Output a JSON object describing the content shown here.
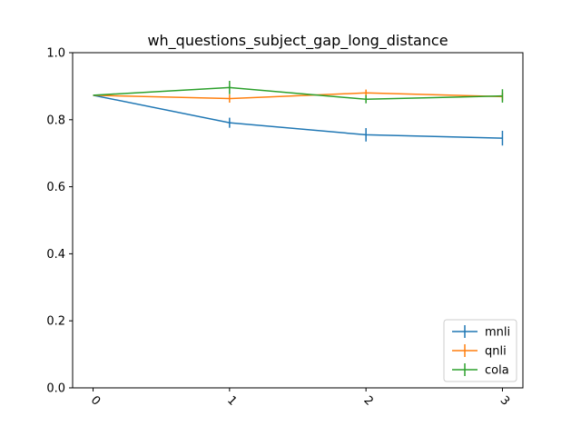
{
  "chart_data": {
    "type": "line",
    "title": "wh_questions_subject_gap_long_distance",
    "xlabel": "",
    "ylabel": "",
    "x": [
      0,
      1,
      2,
      3
    ],
    "x_tick_labels": [
      "0",
      "1",
      "2",
      "3"
    ],
    "xlim": [
      -0.15,
      3.15
    ],
    "ylim": [
      0.0,
      1.0
    ],
    "y_ticks": [
      0.0,
      0.2,
      0.4,
      0.6,
      0.8,
      1.0
    ],
    "y_tick_labels": [
      "0.0",
      "0.2",
      "0.4",
      "0.6",
      "0.8",
      "1.0"
    ],
    "grid": false,
    "legend_position": "lower-right",
    "error_bars": true,
    "series": [
      {
        "name": "mnli",
        "color": "#1f77b4",
        "values": [
          0.873,
          0.791,
          0.755,
          0.745
        ],
        "errors": [
          0.0,
          0.015,
          0.02,
          0.022
        ]
      },
      {
        "name": "qnli",
        "color": "#ff7f0e",
        "values": [
          0.873,
          0.863,
          0.88,
          0.869
        ],
        "errors": [
          0.0,
          0.012,
          0.01,
          0.012
        ]
      },
      {
        "name": "cola",
        "color": "#2ca02c",
        "values": [
          0.873,
          0.896,
          0.861,
          0.871
        ],
        "errors": [
          0.0,
          0.02,
          0.012,
          0.02
        ]
      }
    ]
  }
}
